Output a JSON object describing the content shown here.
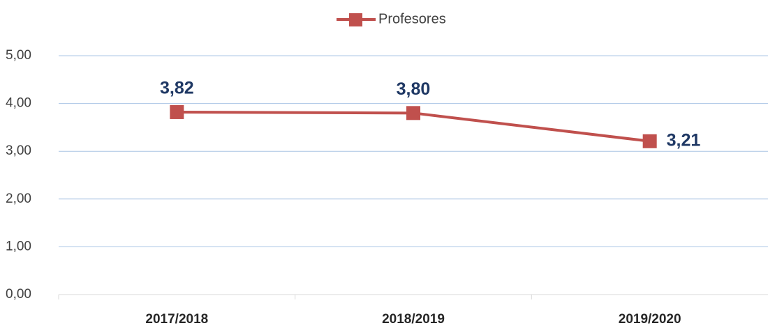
{
  "chart_data": {
    "type": "line",
    "categories": [
      "2017/2018",
      "2018/2019",
      "2019/2020"
    ],
    "series": [
      {
        "name": "Profesores",
        "color": "#c0504d",
        "values": [
          3.82,
          3.8,
          3.21
        ],
        "value_labels": [
          "3,82",
          "3,80",
          "3,21"
        ]
      }
    ],
    "ylim": [
      0,
      5
    ],
    "yticks": [
      {
        "value": 0,
        "label": "0,00"
      },
      {
        "value": 1,
        "label": "1,00"
      },
      {
        "value": 2,
        "label": "2,00"
      },
      {
        "value": 3,
        "label": "3,00"
      },
      {
        "value": 4,
        "label": "4,00"
      },
      {
        "value": 5,
        "label": "5,00"
      }
    ],
    "grid": true,
    "legend": "top"
  }
}
